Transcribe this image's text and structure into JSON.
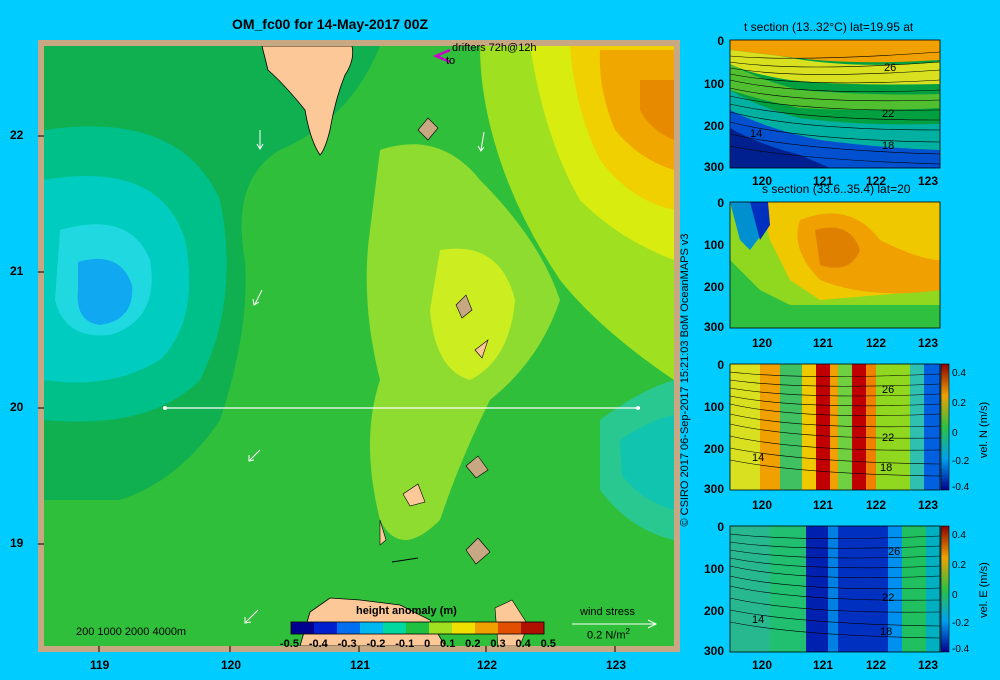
{
  "title": "OM_fc00 for 14-May-2017 00Z",
  "map": {
    "x_ticks": [
      "119",
      "120",
      "121",
      "122",
      "123"
    ],
    "y_ticks": [
      "22",
      "21",
      "20",
      "19"
    ],
    "drifters_label": "drifters 72h@12h",
    "drifters_sub": "to",
    "scale_bar": "200  1000  2000  4000m",
    "colorbar_title": "height anomaly (m)",
    "colorbar_ticks": [
      "-0.5",
      "-0.4",
      "-0.3",
      "-0.2",
      "-0.1",
      "0",
      "0.1",
      "0.2",
      "0.3",
      "0.4",
      "0.5"
    ],
    "wind_label": "wind stress",
    "wind_scale": "0.2 N/m",
    "wind_scale_sup": "2"
  },
  "copyright": "© CSIRO 2017  06-Sep-2017 15:21:03 BoM OceanMAPS v3",
  "panels": [
    {
      "title": "t section (13..32°C) lat=19.95 at",
      "contours": [
        "26",
        "22",
        "14",
        "18"
      ]
    },
    {
      "title": "s section (33.6..35.4) lat=20",
      "contours": []
    },
    {
      "title": "",
      "contours": [
        "26",
        "22",
        "14",
        "18"
      ],
      "cb_label": "vel. N (m/s)",
      "cb_ticks": [
        "0.4",
        "0.2",
        "0",
        "-0.2",
        "-0.4"
      ]
    },
    {
      "title": "",
      "contours": [
        "26",
        "22",
        "14",
        "18"
      ],
      "cb_label": "vel. E (m/s)",
      "cb_ticks": [
        "0.4",
        "0.2",
        "0",
        "-0.2",
        "-0.4"
      ]
    }
  ],
  "panel_axes": {
    "x_ticks": [
      "120",
      "121",
      "122",
      "123"
    ],
    "y_ticks": [
      "0",
      "100",
      "200",
      "300"
    ]
  }
}
